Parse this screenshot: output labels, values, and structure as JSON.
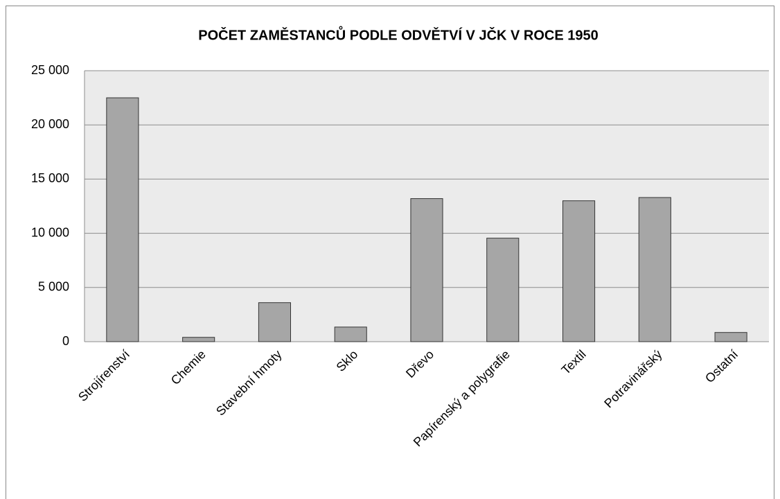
{
  "chart_data": {
    "type": "bar",
    "title": "POČET ZAMĚSTANCŮ PODLE ODVĚTVÍ V JČK V ROCE 1950",
    "categories": [
      "Strojírenství",
      "Chemie",
      "Stavební hmoty",
      "Sklo",
      "Dřevo",
      "Papírenský a polygrafie",
      "Textil",
      "Potravinářský",
      "Ostatní"
    ],
    "values": [
      22500,
      400,
      3600,
      1350,
      13200,
      9550,
      13000,
      13300,
      850
    ],
    "color": "#a6a6a6",
    "ylim": [
      0,
      25000
    ],
    "yticks": [
      0,
      {
        "value": 5000,
        "label": "5 000"
      },
      {
        "value": 10000,
        "label": "10 000"
      },
      {
        "value": 15000,
        "label": "15 000"
      },
      {
        "value": 20000,
        "label": "20 000"
      },
      {
        "value": 25000,
        "label": "25 000"
      }
    ],
    "grid": true
  }
}
